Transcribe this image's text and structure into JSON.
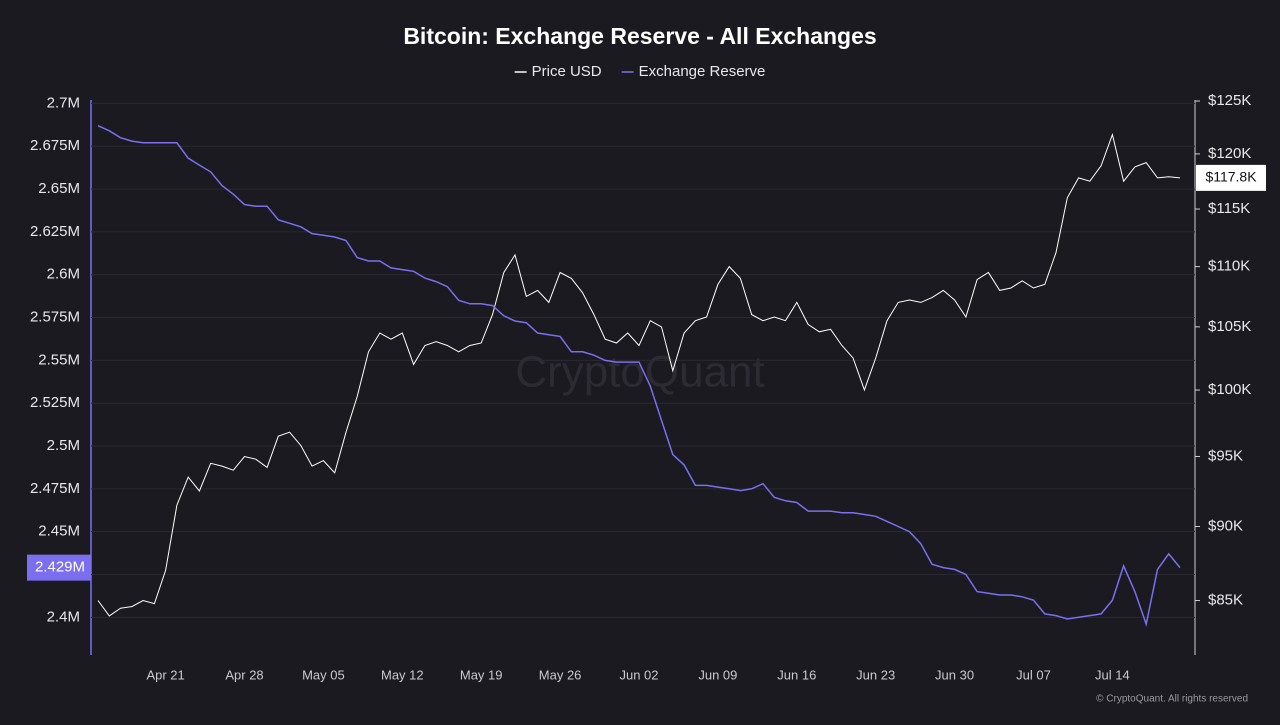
{
  "chart_data": {
    "type": "line",
    "title": "Bitcoin: Exchange Reserve - All Exchanges",
    "watermark": "CryptoQuant",
    "copyright": "© CryptoQuant. All rights reserved",
    "categories": [
      null,
      null,
      null,
      null,
      null,
      null,
      "Apr 21",
      null,
      null,
      null,
      null,
      null,
      null,
      "Apr 28",
      null,
      null,
      null,
      null,
      null,
      null,
      "May 05",
      null,
      null,
      null,
      null,
      null,
      null,
      "May 12",
      null,
      null,
      null,
      null,
      null,
      null,
      "May 19",
      null,
      null,
      null,
      null,
      null,
      null,
      "May 26",
      null,
      null,
      null,
      null,
      null,
      null,
      "Jun 02",
      null,
      null,
      null,
      null,
      null,
      null,
      "Jun 09",
      null,
      null,
      null,
      null,
      null,
      null,
      "Jun 16",
      null,
      null,
      null,
      null,
      null,
      null,
      "Jun 23",
      null,
      null,
      null,
      null,
      null,
      null,
      "Jun 30",
      null,
      null,
      null,
      null,
      null,
      null,
      "Jul 07",
      null,
      null,
      null,
      null,
      null,
      null,
      "Jul 14",
      null,
      null,
      null,
      null,
      null,
      null
    ],
    "series": [
      {
        "name": "Price USD",
        "color": "#ffffff",
        "axis": "y2",
        "current_label": "$117.8K",
        "values": [
          85000,
          84000,
          84500,
          84600,
          85000,
          84800,
          87000,
          91500,
          93500,
          92500,
          94500,
          94300,
          94000,
          95000,
          94800,
          94200,
          96500,
          96800,
          95800,
          94300,
          94700,
          93800,
          96800,
          99500,
          103000,
          104500,
          104000,
          104500,
          102000,
          103500,
          103800,
          103500,
          103000,
          103500,
          103700,
          106000,
          109500,
          111000,
          107500,
          108000,
          107000,
          109500,
          109000,
          107800,
          106000,
          104000,
          103700,
          104500,
          103500,
          105500,
          105000,
          101500,
          104500,
          105500,
          105800,
          108500,
          110000,
          109000,
          106000,
          105500,
          105800,
          105500,
          107000,
          105200,
          104600,
          104800,
          103500,
          102500,
          100000,
          102500,
          105500,
          107000,
          107200,
          107000,
          107400,
          108000,
          107200,
          105800,
          108900,
          109500,
          108000,
          108200,
          108800,
          108200,
          108500,
          111200,
          116000,
          117800,
          117500,
          118900,
          121800,
          117500,
          118800,
          119200,
          117800,
          117900,
          117800
        ]
      },
      {
        "name": "Exchange Reserve",
        "color": "#7b6ff0",
        "axis": "y",
        "current_label": "2.429M",
        "values": [
          2687000,
          2684000,
          2680000,
          2678000,
          2677000,
          2677000,
          2677000,
          2677000,
          2668000,
          2664000,
          2660000,
          2652000,
          2647000,
          2641000,
          2640000,
          2640000,
          2632000,
          2630000,
          2628000,
          2624000,
          2623000,
          2622000,
          2620000,
          2610000,
          2608000,
          2608000,
          2604000,
          2603000,
          2602000,
          2598000,
          2596000,
          2593000,
          2585000,
          2583000,
          2583000,
          2582000,
          2576000,
          2573000,
          2572000,
          2566000,
          2565000,
          2564000,
          2555000,
          2555000,
          2553000,
          2550000,
          2549000,
          2549000,
          2549000,
          2535000,
          2515000,
          2495000,
          2489000,
          2477000,
          2477000,
          2476000,
          2475000,
          2474000,
          2475000,
          2478000,
          2470000,
          2468000,
          2467000,
          2462000,
          2462000,
          2462000,
          2461000,
          2461000,
          2460000,
          2459000,
          2456000,
          2453000,
          2450000,
          2443000,
          2431000,
          2429000,
          2428000,
          2425000,
          2415000,
          2414000,
          2413000,
          2413000,
          2412000,
          2410000,
          2402000,
          2401000,
          2399000,
          2400000,
          2401000,
          2402000,
          2410000,
          2430000,
          2415000,
          2396000,
          2428000,
          2437000,
          2429000
        ]
      }
    ],
    "ylim": [
      2378000,
      2702000
    ],
    "yticks": [
      {
        "value": 2400000,
        "label": "2.4M"
      },
      {
        "value": 2425000,
        "label": "2.425M"
      },
      {
        "value": 2450000,
        "label": "2.45M"
      },
      {
        "value": 2475000,
        "label": "2.475M"
      },
      {
        "value": 2500000,
        "label": "2.5M"
      },
      {
        "value": 2525000,
        "label": "2.525M"
      },
      {
        "value": 2550000,
        "label": "2.55M"
      },
      {
        "value": 2575000,
        "label": "2.575M"
      },
      {
        "value": 2600000,
        "label": "2.6M"
      },
      {
        "value": 2625000,
        "label": "2.625M"
      },
      {
        "value": 2650000,
        "label": "2.65M"
      },
      {
        "value": 2675000,
        "label": "2.675M"
      },
      {
        "value": 2700000,
        "label": "2.7M"
      }
    ],
    "y2lim": [
      81500,
      125100
    ],
    "y2scale": "log",
    "y2ticks": [
      {
        "value": 85000,
        "label": "$85K"
      },
      {
        "value": 90000,
        "label": "$90K"
      },
      {
        "value": 95000,
        "label": "$95K"
      },
      {
        "value": 100000,
        "label": "$100K"
      },
      {
        "value": 105000,
        "label": "$105K"
      },
      {
        "value": 110000,
        "label": "$110K"
      },
      {
        "value": 115000,
        "label": "$115K"
      },
      {
        "value": 120000,
        "label": "$120K"
      },
      {
        "value": 125000,
        "label": "$125K"
      }
    ],
    "grid": true
  }
}
